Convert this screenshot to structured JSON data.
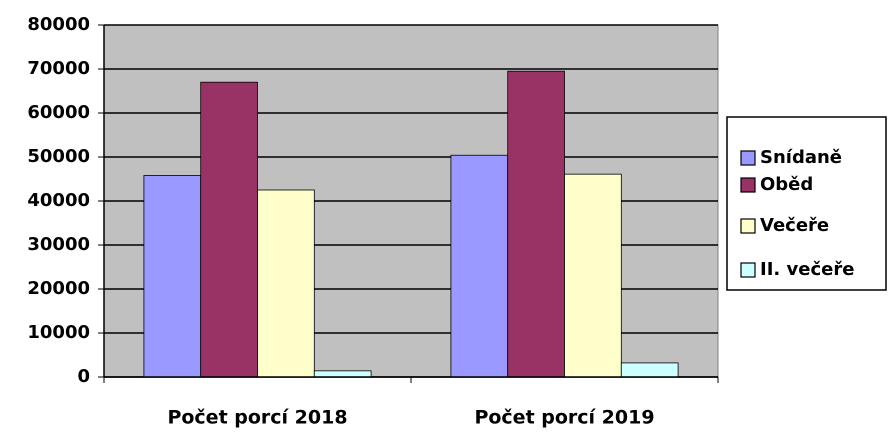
{
  "chart_data": {
    "type": "bar",
    "categories": [
      "Počet porcí 2018",
      "Počet porcí 2019"
    ],
    "series": [
      {
        "name": "Snídaně",
        "color": "#9999ff",
        "values": [
          45800,
          50400
        ]
      },
      {
        "name": "Oběd",
        "color": "#993366",
        "values": [
          67000,
          69500
        ]
      },
      {
        "name": "Večeře",
        "color": "#ffffcc",
        "values": [
          42500,
          46100
        ]
      },
      {
        "name": "II. večeře",
        "color": "#ccffff",
        "values": [
          1400,
          3200
        ]
      }
    ],
    "ylim": [
      0,
      80000
    ],
    "yticks": [
      0,
      10000,
      20000,
      30000,
      40000,
      50000,
      60000,
      70000,
      80000
    ],
    "grid": true,
    "legend": "right",
    "plot_background": "#c0c0c0"
  }
}
